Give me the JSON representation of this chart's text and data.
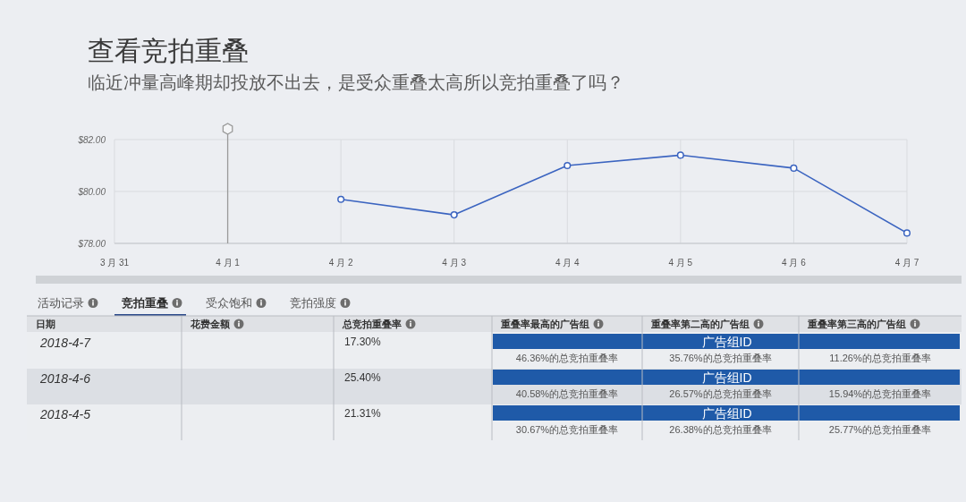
{
  "chart_data": [
    {
      "type": "line",
      "title": "查看竞拍重叠",
      "subtitle": "临近冲量高峰期却投放不出去，是受众重叠太高所以竞拍重叠了吗？",
      "categories": [
        "3 月 31",
        "4 月 1",
        "4 月 2",
        "4 月 3",
        "4 月 4",
        "4 月 5",
        "4 月 6",
        "4 月 7"
      ],
      "series": [
        {
          "color": "#3b64c0",
          "values": [
            null,
            null,
            79.7,
            79.1,
            81.0,
            81.4,
            80.9,
            78.4
          ]
        }
      ],
      "ylim": [
        78,
        82
      ],
      "yticks": [
        {
          "value": 78,
          "label": "$78.00"
        },
        {
          "value": 80,
          "label": "$80.00"
        },
        {
          "value": 82,
          "label": "$82.00"
        }
      ],
      "grid": true,
      "marker": "circle",
      "line_style": "solid",
      "ref_lines": [
        {
          "axis": "x",
          "value": "4 月 1",
          "color": "#9a9a9a"
        }
      ]
    },
    {
      "type": "other",
      "annotations": [
        "活动记录",
        "竞拍重叠",
        "受众饱和",
        "竞拍强度"
      ],
      "categories": [
        "日期",
        "花费金额",
        "总竞拍重叠率",
        "重叠率最高的广告组",
        "重叠率第二高的广告组",
        "重叠率第三高的广告组"
      ],
      "cell_labels": [
        [
          "2018-4-7",
          null,
          "17.30%",
          "广告组ID",
          "46.36%的总竞拍重叠率",
          "35.76%的总竞拍重叠率",
          "11.26%的总竞拍重叠率"
        ],
        [
          "2018-4-6",
          null,
          "25.40%",
          "广告组ID",
          "40.58%的总竞拍重叠率",
          "26.57%的总竞拍重叠率",
          "15.94%的总竞拍重叠率"
        ],
        [
          "2018-4-5",
          null,
          "21.31%",
          "广告组ID",
          "30.67%的总竞拍重叠率",
          "26.38%的总竞拍重叠率",
          "25.77%的总竞拍重叠率"
        ]
      ]
    }
  ]
}
